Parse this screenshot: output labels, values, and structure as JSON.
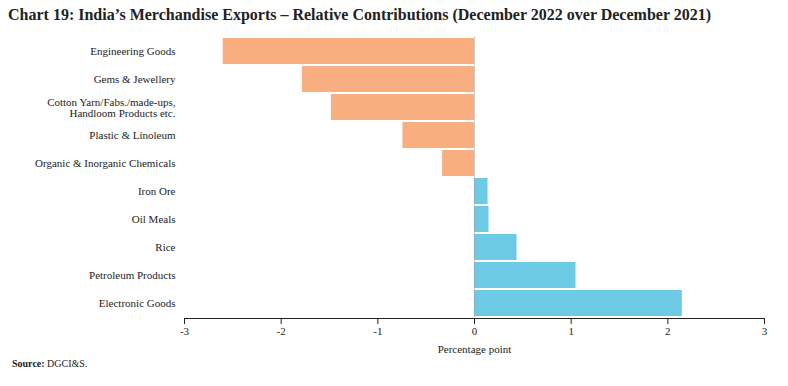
{
  "chart_data": {
    "type": "bar",
    "orientation": "horizontal",
    "title": "Chart 19: India’s Merchandise Exports – Relative Contributions (December 2022 over December 2021)",
    "x_label": "Percentage point",
    "source": "Source: DGCI&S.",
    "categories": [
      "Engineering Goods",
      "Gems & Jewellery",
      "Cotton Yarn/Fabs./made-ups, Handloom Products etc.",
      "Plastic & Linoleum",
      "Organic & Inorganic Chemicals",
      "Iron Ore",
      "Oil Meals",
      "Rice",
      "Petroleum Products",
      "Electronic Goods"
    ],
    "values": [
      -2.6,
      -1.78,
      -1.48,
      -0.74,
      -0.33,
      0.14,
      0.15,
      0.44,
      1.05,
      2.15
    ],
    "colors": [
      "#F8AE7E",
      "#F8AE7E",
      "#F8AE7E",
      "#F8AE7E",
      "#F8AE7E",
      "#6DCAE5",
      "#6DCAE5",
      "#6DCAE5",
      "#6DCAE5",
      "#6DCAE5"
    ],
    "xlim": [
      -3,
      3
    ],
    "xticks": [
      -3,
      -2,
      -1,
      0,
      1,
      2,
      3
    ],
    "grid": false
  }
}
